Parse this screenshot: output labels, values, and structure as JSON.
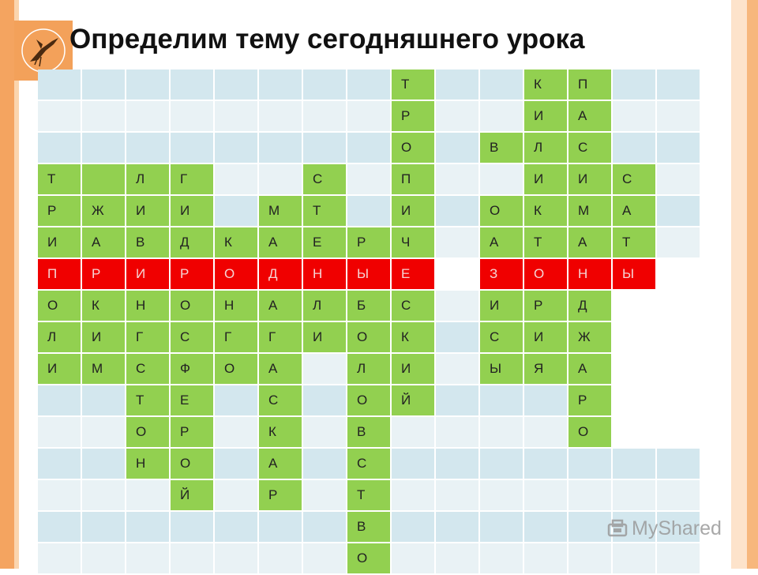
{
  "title": "Определим тему сегодняшнего урока",
  "watermark": "MyShared",
  "colors": {
    "green": "#92d050",
    "red": "#f00000",
    "empty_blue": "#d3e7ee",
    "empty_light": "#e9f2f5"
  },
  "highlight_row": 6,
  "crossword_rows": [
    [
      "",
      "",
      "",
      "",
      "",
      "",
      "",
      "",
      "Т",
      "",
      "",
      "К",
      "П",
      "",
      ""
    ],
    [
      "",
      "",
      "",
      "",
      "",
      "",
      "",
      "",
      "Р",
      "",
      "",
      "И",
      "А",
      "",
      ""
    ],
    [
      "",
      "",
      "",
      "",
      "",
      "",
      "",
      "",
      "О",
      "",
      "В",
      "Л",
      "С",
      "",
      ""
    ],
    [
      "Т",
      "",
      "Л",
      "Г",
      "",
      "",
      "С",
      "",
      "П",
      "",
      "",
      "И",
      "И",
      "С",
      ""
    ],
    [
      "Р",
      "Ж",
      "И",
      "И",
      "",
      "М",
      "Т",
      "",
      "И",
      "",
      "О",
      "К",
      "М",
      "А",
      ""
    ],
    [
      "И",
      "А",
      "В",
      "Д",
      "К",
      "А",
      "Е",
      "Р",
      "Ч",
      "",
      "А",
      "Т",
      "А",
      "Т",
      ""
    ],
    [
      "П",
      "Р",
      "И",
      "Р",
      "О",
      "Д",
      "Н",
      "Ы",
      "Е",
      "",
      "З",
      "О",
      "Н",
      "Ы",
      ""
    ],
    [
      "О",
      "К",
      "Н",
      "О",
      "Н",
      "А",
      "Л",
      "Б",
      "С",
      "",
      "И",
      "Р",
      "Д",
      "",
      ""
    ],
    [
      "Л",
      "И",
      "Г",
      "С",
      "Г",
      "Г",
      "И",
      "О",
      "К",
      "",
      "С",
      "И",
      "Ж",
      "",
      ""
    ],
    [
      "И",
      "М",
      "С",
      "Ф",
      "О",
      "А",
      "",
      "Л",
      "И",
      "",
      "Ы",
      "Я",
      "А",
      "",
      ""
    ],
    [
      "",
      "",
      "Т",
      "Е",
      "",
      "С",
      "",
      "О",
      "Й",
      "",
      "",
      "",
      "Р",
      "",
      ""
    ],
    [
      "",
      "",
      "О",
      "Р",
      "",
      "К",
      "",
      "В",
      "",
      "",
      "",
      "",
      "О",
      "",
      ""
    ],
    [
      "",
      "",
      "Н",
      "О",
      "",
      "А",
      "",
      "С",
      "",
      "",
      "",
      "",
      "",
      "",
      ""
    ],
    [
      "",
      "",
      "",
      "Й",
      "",
      "Р",
      "",
      "Т",
      "",
      "",
      "",
      "",
      "",
      "",
      ""
    ],
    [
      "",
      "",
      "",
      "",
      "",
      "",
      "",
      "В",
      "",
      "",
      "",
      "",
      "",
      "",
      ""
    ],
    [
      "",
      "",
      "",
      "",
      "",
      "",
      "",
      "О",
      "",
      "",
      "",
      "",
      "",
      "",
      ""
    ]
  ],
  "green_cells": [
    [
      0,
      8
    ],
    [
      0,
      11
    ],
    [
      0,
      12
    ],
    [
      1,
      8
    ],
    [
      1,
      11
    ],
    [
      1,
      12
    ],
    [
      2,
      8
    ],
    [
      2,
      10
    ],
    [
      2,
      11
    ],
    [
      2,
      12
    ],
    [
      3,
      0
    ],
    [
      3,
      1
    ],
    [
      3,
      2
    ],
    [
      3,
      3
    ],
    [
      3,
      6
    ],
    [
      3,
      8
    ],
    [
      3,
      11
    ],
    [
      3,
      12
    ],
    [
      3,
      13
    ],
    [
      4,
      0
    ],
    [
      4,
      1
    ],
    [
      4,
      2
    ],
    [
      4,
      3
    ],
    [
      4,
      5
    ],
    [
      4,
      6
    ],
    [
      4,
      8
    ],
    [
      4,
      10
    ],
    [
      4,
      11
    ],
    [
      4,
      12
    ],
    [
      4,
      13
    ],
    [
      5,
      0
    ],
    [
      5,
      1
    ],
    [
      5,
      2
    ],
    [
      5,
      3
    ],
    [
      5,
      4
    ],
    [
      5,
      5
    ],
    [
      5,
      6
    ],
    [
      5,
      7
    ],
    [
      5,
      8
    ],
    [
      5,
      10
    ],
    [
      5,
      11
    ],
    [
      5,
      12
    ],
    [
      5,
      13
    ],
    [
      7,
      0
    ],
    [
      7,
      1
    ],
    [
      7,
      2
    ],
    [
      7,
      3
    ],
    [
      7,
      4
    ],
    [
      7,
      5
    ],
    [
      7,
      6
    ],
    [
      7,
      7
    ],
    [
      7,
      8
    ],
    [
      7,
      10
    ],
    [
      7,
      11
    ],
    [
      7,
      12
    ],
    [
      8,
      0
    ],
    [
      8,
      1
    ],
    [
      8,
      2
    ],
    [
      8,
      3
    ],
    [
      8,
      4
    ],
    [
      8,
      5
    ],
    [
      8,
      6
    ],
    [
      8,
      7
    ],
    [
      8,
      8
    ],
    [
      8,
      10
    ],
    [
      8,
      11
    ],
    [
      8,
      12
    ],
    [
      9,
      0
    ],
    [
      9,
      1
    ],
    [
      9,
      2
    ],
    [
      9,
      3
    ],
    [
      9,
      4
    ],
    [
      9,
      5
    ],
    [
      9,
      7
    ],
    [
      9,
      8
    ],
    [
      9,
      10
    ],
    [
      9,
      11
    ],
    [
      9,
      12
    ],
    [
      10,
      2
    ],
    [
      10,
      3
    ],
    [
      10,
      5
    ],
    [
      10,
      7
    ],
    [
      10,
      8
    ],
    [
      10,
      12
    ],
    [
      11,
      2
    ],
    [
      11,
      3
    ],
    [
      11,
      5
    ],
    [
      11,
      7
    ],
    [
      11,
      12
    ],
    [
      12,
      2
    ],
    [
      12,
      3
    ],
    [
      12,
      5
    ],
    [
      12,
      7
    ],
    [
      13,
      3
    ],
    [
      13,
      5
    ],
    [
      13,
      7
    ],
    [
      14,
      7
    ],
    [
      15,
      7
    ]
  ],
  "red_cells": [
    [
      6,
      0
    ],
    [
      6,
      1
    ],
    [
      6,
      2
    ],
    [
      6,
      3
    ],
    [
      6,
      4
    ],
    [
      6,
      5
    ],
    [
      6,
      6
    ],
    [
      6,
      7
    ],
    [
      6,
      8
    ],
    [
      6,
      10
    ],
    [
      6,
      11
    ],
    [
      6,
      12
    ],
    [
      6,
      13
    ]
  ],
  "white_cells": [
    [
      6,
      9
    ],
    [
      6,
      14
    ],
    [
      7,
      13
    ],
    [
      7,
      14
    ],
    [
      8,
      13
    ],
    [
      8,
      14
    ],
    [
      9,
      13
    ],
    [
      9,
      14
    ],
    [
      10,
      13
    ],
    [
      10,
      14
    ],
    [
      11,
      13
    ],
    [
      11,
      14
    ]
  ]
}
